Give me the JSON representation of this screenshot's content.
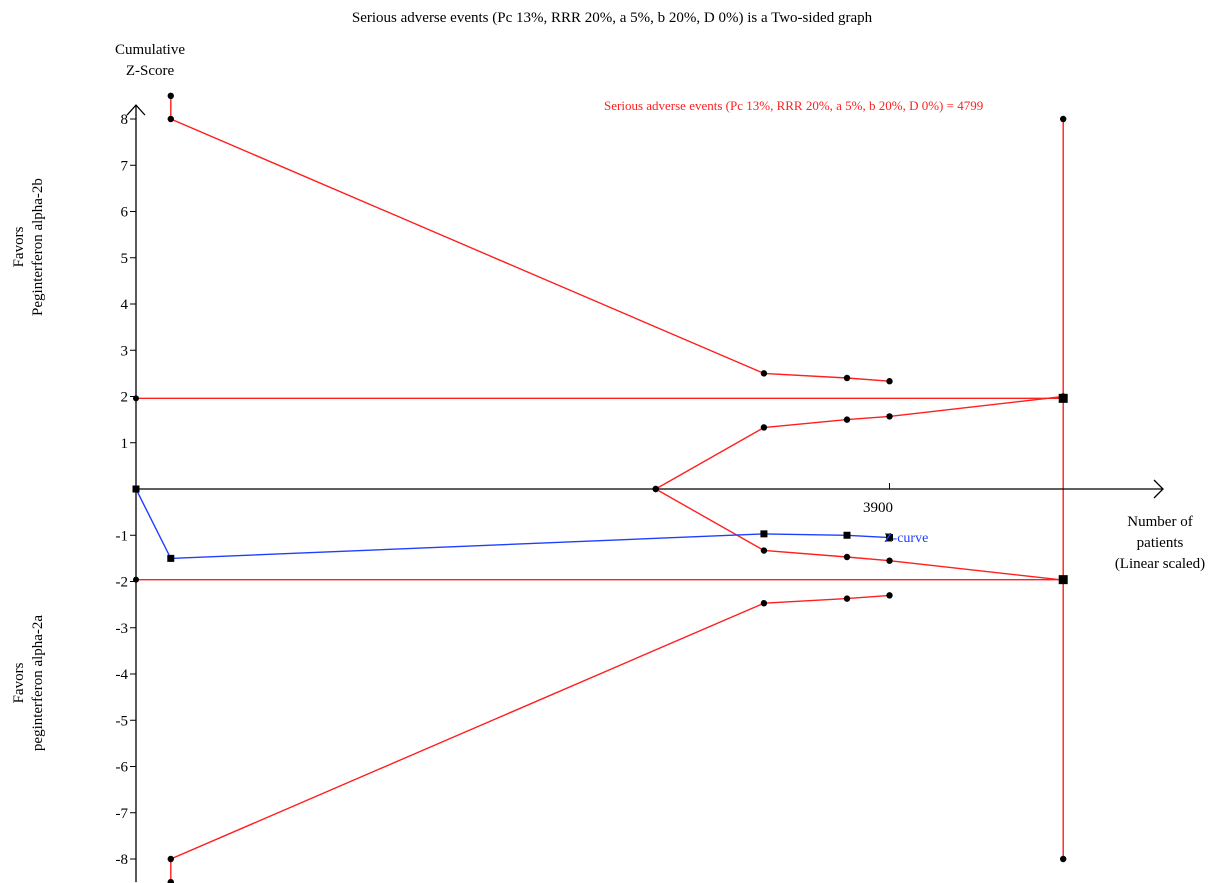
{
  "chart_data": {
    "type": "line",
    "title": "Serious adverse events (Pc 13%, RRR 20%, a 5%, b 20%, D 0%) is a Two-sided graph",
    "ylabel_line1": "Cumulative",
    "ylabel_line2": "Z-Score",
    "xlabel_line1": "Number of",
    "xlabel_line2": "patients",
    "xlabel_line3": "(Linear scaled)",
    "upper_side_label_line1": "Favors",
    "upper_side_label_line2": "Peginterferon alpha-2b",
    "lower_side_label_line1": "Favors",
    "lower_side_label_line2": "peginterferon alpha-2a",
    "ris_label": "Serious adverse events (Pc 13%, RRR 20%, a 5%, b 20%, D 0%) = 4799",
    "zcurve_label": "Z-curve",
    "x_tick_label": "3900",
    "x_tick_value": 3900,
    "xlim": [
      0,
      5300
    ],
    "ylim": [
      -8.5,
      8.5
    ],
    "y_ticks": [
      {
        "value": 8,
        "label": "8"
      },
      {
        "value": 7,
        "label": "7"
      },
      {
        "value": 6,
        "label": "6"
      },
      {
        "value": 5,
        "label": "5"
      },
      {
        "value": 4,
        "label": "4"
      },
      {
        "value": 3,
        "label": "3"
      },
      {
        "value": 2,
        "label": "2"
      },
      {
        "value": 1,
        "label": "1"
      },
      {
        "value": -1,
        "label": "-1"
      },
      {
        "value": -2,
        "label": "-2"
      },
      {
        "value": -3,
        "label": "-3"
      },
      {
        "value": -4,
        "label": "-4"
      },
      {
        "value": -5,
        "label": "-5"
      },
      {
        "value": -6,
        "label": "-6"
      },
      {
        "value": -7,
        "label": "-7"
      },
      {
        "value": -8,
        "label": "-8"
      }
    ],
    "conventional_boundary": 1.96,
    "required_information_size": 4799,
    "series": [
      {
        "role": "upper_efficacy_boundary",
        "points": [
          [
            180,
            8.5
          ],
          [
            180,
            8.0
          ],
          [
            3250,
            2.5
          ],
          [
            3680,
            2.4
          ],
          [
            3900,
            2.33
          ]
        ]
      },
      {
        "role": "upper_futility_boundary",
        "points": [
          [
            2690,
            0
          ],
          [
            3250,
            1.33
          ],
          [
            3680,
            1.5
          ],
          [
            3900,
            1.57
          ],
          [
            4799,
            2.0
          ]
        ]
      },
      {
        "role": "lower_futility_boundary",
        "points": [
          [
            2690,
            0
          ],
          [
            3250,
            -1.33
          ],
          [
            3680,
            -1.47
          ],
          [
            3900,
            -1.55
          ],
          [
            4799,
            -1.97
          ]
        ]
      },
      {
        "role": "lower_efficacy_boundary",
        "points": [
          [
            180,
            -8.5
          ],
          [
            180,
            -8.0
          ],
          [
            3250,
            -2.47
          ],
          [
            3680,
            -2.37
          ],
          [
            3900,
            -2.3
          ]
        ]
      },
      {
        "name": "Z-curve",
        "points": [
          [
            0,
            0
          ],
          [
            180,
            -1.5
          ],
          [
            3250,
            -0.97
          ],
          [
            3680,
            -1.0
          ],
          [
            3900,
            -1.05
          ]
        ]
      }
    ],
    "colors": {
      "boundary": "#ff1f1f",
      "zcurve": "#1f3fff",
      "axis": "#000000",
      "marker": "#000000"
    }
  }
}
